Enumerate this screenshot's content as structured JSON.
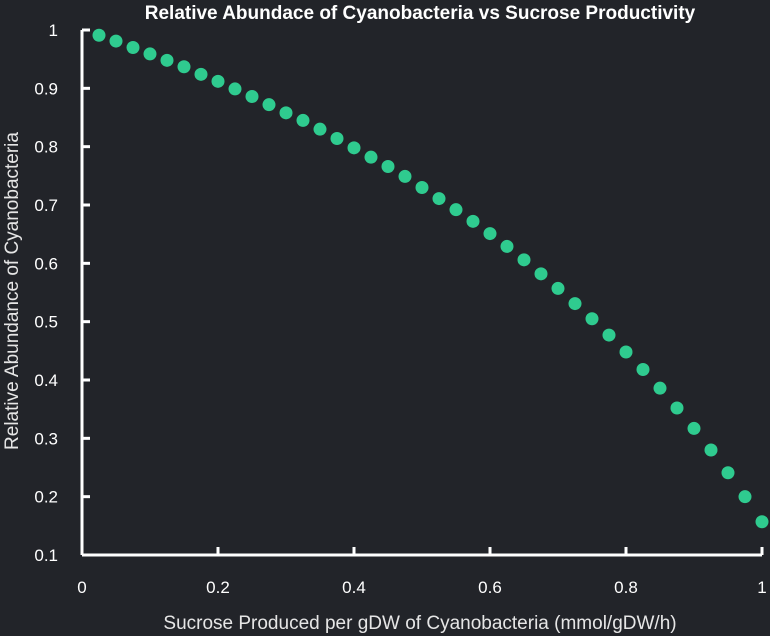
{
  "chart_data": {
    "type": "scatter",
    "title": "Relative Abundace of Cyanobacteria vs Sucrose Productivity",
    "xlabel": "Sucrose Produced per gDW of Cyanobacteria (mmol/gDW/h)",
    "ylabel": "Relative Abundance of Cyanobacteria",
    "xlim": [
      0,
      1
    ],
    "ylim": [
      0.1,
      1
    ],
    "xticks": [
      "0",
      "0.2",
      "0.4",
      "0.6",
      "0.8",
      "1"
    ],
    "yticks": [
      "0.1",
      "0.2",
      "0.3",
      "0.4",
      "0.5",
      "0.6",
      "0.7",
      "0.8",
      "0.9",
      "1"
    ],
    "grid": false,
    "marker_color": "#2fcb8f",
    "background_color": "#222429",
    "series": [
      {
        "x": [
          0.025,
          0.05,
          0.075,
          0.1,
          0.125,
          0.15,
          0.175,
          0.2,
          0.225,
          0.25,
          0.275,
          0.3,
          0.325,
          0.35,
          0.375,
          0.4,
          0.425,
          0.45,
          0.475,
          0.5,
          0.525,
          0.55,
          0.575,
          0.6,
          0.625,
          0.65,
          0.675,
          0.7,
          0.725,
          0.75,
          0.775,
          0.8,
          0.825,
          0.85,
          0.875,
          0.9,
          0.925,
          0.95,
          0.975,
          1.0
        ],
        "y": [
          0.991,
          0.981,
          0.97,
          0.959,
          0.948,
          0.937,
          0.924,
          0.912,
          0.899,
          0.886,
          0.872,
          0.858,
          0.845,
          0.83,
          0.814,
          0.798,
          0.782,
          0.766,
          0.749,
          0.73,
          0.711,
          0.692,
          0.672,
          0.651,
          0.629,
          0.606,
          0.582,
          0.557,
          0.531,
          0.505,
          0.477,
          0.448,
          0.418,
          0.386,
          0.352,
          0.317,
          0.28,
          0.241,
          0.2,
          0.157
        ]
      }
    ]
  }
}
